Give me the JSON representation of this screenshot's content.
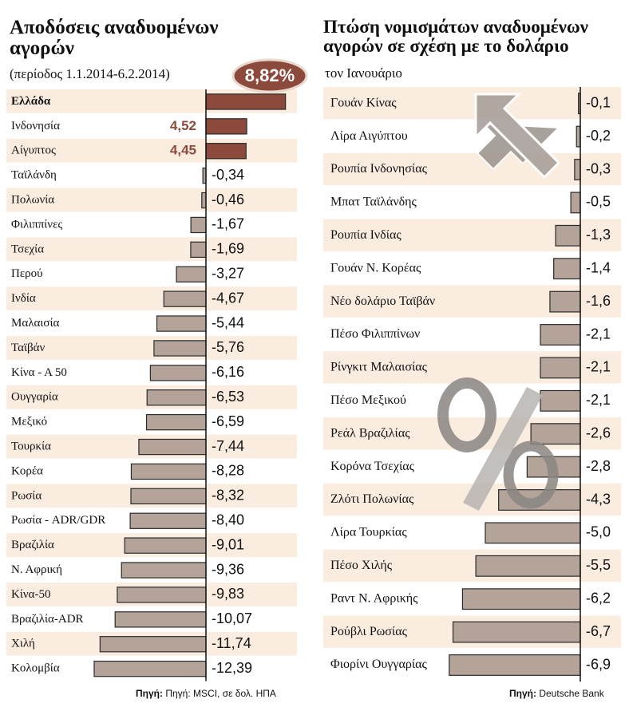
{
  "chart_data": [
    {
      "type": "bar",
      "orientation": "horizontal",
      "title": "Αποδόσεις αναδυομένων αγορών",
      "subtitle": "(περίοδος 1.1.2014-6.2.2014)",
      "categories": [
        "Ελλάδα",
        "Ινδονησία",
        "Αίγυπτος",
        "Ταϊλάνδη",
        "Πολωνία",
        "Φιλιππίνες",
        "Τσεχία",
        "Περού",
        "Ινδία",
        "Μαλαισία",
        "Ταϊβάν",
        "Κίνα - Α 50",
        "Ουγγαρία",
        "Μεξικό",
        "Τουρκία",
        "Κορέα",
        "Ρωσία",
        "Ρωσία - ADR/GDR",
        "Βραζιλία",
        "Ν. Αφρική",
        "Κίνα-50",
        "Βραζιλία-ADR",
        "Χιλή",
        "Κολομβία"
      ],
      "values": [
        8.82,
        4.52,
        4.45,
        -0.34,
        -0.46,
        -1.67,
        -1.69,
        -3.27,
        -4.67,
        -5.44,
        -5.76,
        -6.16,
        -6.53,
        -6.59,
        -7.44,
        -8.28,
        -8.32,
        -8.4,
        -9.01,
        -9.36,
        -9.83,
        -10.07,
        -11.74,
        -12.39
      ],
      "value_labels": [
        "8,82%",
        "4,52",
        "4,45",
        "-0,34",
        "-0,46",
        "-1,67",
        "-1,69",
        "-3,27",
        "-4,67",
        "-5,44",
        "-5,76",
        "-6,16",
        "-6,53",
        "-6,59",
        "-7,44",
        "-8,28",
        "-8,32",
        "-8,40",
        "-9,01",
        "-9,36",
        "-9,83",
        "-10,07",
        "-11,74",
        "-12,39"
      ],
      "color": "#b4a398",
      "positive_color": "#8c4a3c",
      "source_label": "Πηγή:",
      "source": "Πηγή: MSCI, σε δολ. ΗΠΑ"
    },
    {
      "type": "bar",
      "orientation": "horizontal",
      "title": "Πτώση νομισμάτων αναδυομένων αγορών σε σχέση με το δολάριο",
      "subtitle": "τον Ιανουάριο",
      "categories": [
        "Γουάν Κίνας",
        "Λίρα Αιγύπτου",
        "Ρουπία Ινδονησίας",
        "Μπατ Ταϊλάνδης",
        "Ρουπία Ινδίας",
        "Γουάν Ν. Κορέας",
        "Νέο δολάριο Ταϊβάν",
        "Πέσο Φιλιππίνων",
        "Ρίνγκιτ Μαλαισίας",
        "Πέσο Μεξικού",
        "Ρεάλ Βραζιλίας",
        "Κορόνα Τσεχίας",
        "Ζλότι Πολωνίας",
        "Λίρα Τουρκίας",
        "Πέσο Χιλής",
        "Ραντ Ν. Αφρικής",
        "Ρούβλι Ρωσίας",
        "Φιορίνι Ουγγαρίας"
      ],
      "values": [
        -0.1,
        -0.2,
        -0.3,
        -0.5,
        -1.3,
        -1.4,
        -1.6,
        -2.1,
        -2.1,
        -2.1,
        -2.6,
        -2.8,
        -4.3,
        -5.0,
        -5.5,
        -6.2,
        -6.7,
        -6.9
      ],
      "value_labels": [
        "-0,1",
        "-0,2",
        "-0,3",
        "-0,5",
        "-1,3",
        "-1,4",
        "-1,6",
        "-2,1",
        "-2,1",
        "-2,1",
        "-2,6",
        "-2,8",
        "-4,3",
        "-5,0",
        "-5,5",
        "-6,2",
        "-6,7",
        "-6,9"
      ],
      "color": "#b4a398",
      "source_label": "Πηγή:",
      "source": "Deutsche Bank"
    }
  ]
}
